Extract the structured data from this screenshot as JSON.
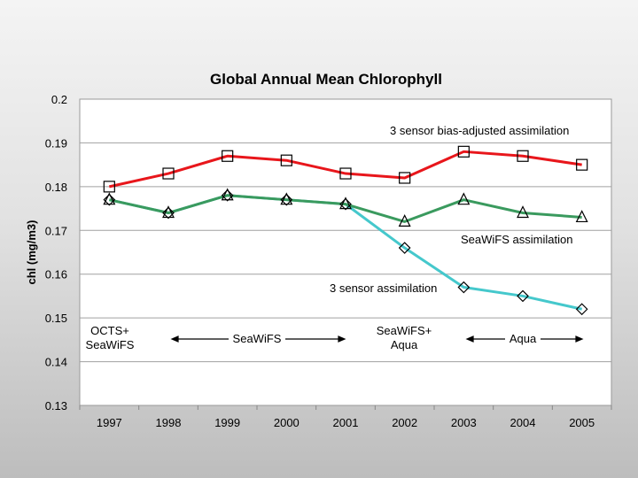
{
  "chart_data": {
    "type": "line",
    "title": "Global Annual Mean Chlorophyll",
    "xlabel": "",
    "ylabel": "chl (mg/m3)",
    "x": [
      "1997",
      "1998",
      "1999",
      "2000",
      "2001",
      "2002",
      "2003",
      "2004",
      "2005"
    ],
    "ylim": [
      0.13,
      0.2
    ],
    "yticks": [
      "0.2",
      "0.19",
      "0.18",
      "0.17",
      "0.16",
      "0.15",
      "0.14",
      "0.13"
    ],
    "grid": "horizontal",
    "series": [
      {
        "name": "3 sensor bias-adjusted assimilation",
        "color": "#e8161b",
        "marker": "square",
        "values": [
          0.18,
          0.183,
          0.187,
          0.186,
          0.183,
          0.182,
          0.188,
          0.187,
          0.185
        ]
      },
      {
        "name": "SeaWiFS assimilation",
        "color": "#3a9a5e",
        "marker": "triangle",
        "values": [
          0.177,
          0.174,
          0.178,
          0.177,
          0.176,
          0.172,
          0.177,
          0.174,
          0.173
        ]
      },
      {
        "name": "3 sensor assimilation",
        "color": "#45c8cc",
        "marker": "diamond",
        "values": [
          0.177,
          0.174,
          0.178,
          0.177,
          0.176,
          0.166,
          0.157,
          0.155,
          0.152
        ]
      }
    ],
    "annotations": {
      "bias_adjusted": "3 sensor bias-adjusted assimilation",
      "seawifs_assim": "SeaWiFS assimilation",
      "three_sensor": "3 sensor assimilation",
      "octs_line1": "OCTS+",
      "octs_line2": "SeaWiFS",
      "seawifs_period": "SeaWiFS",
      "seawifs_aqua_line1": "SeaWiFS+",
      "seawifs_aqua_line2": "Aqua",
      "aqua_period": "Aqua"
    }
  }
}
